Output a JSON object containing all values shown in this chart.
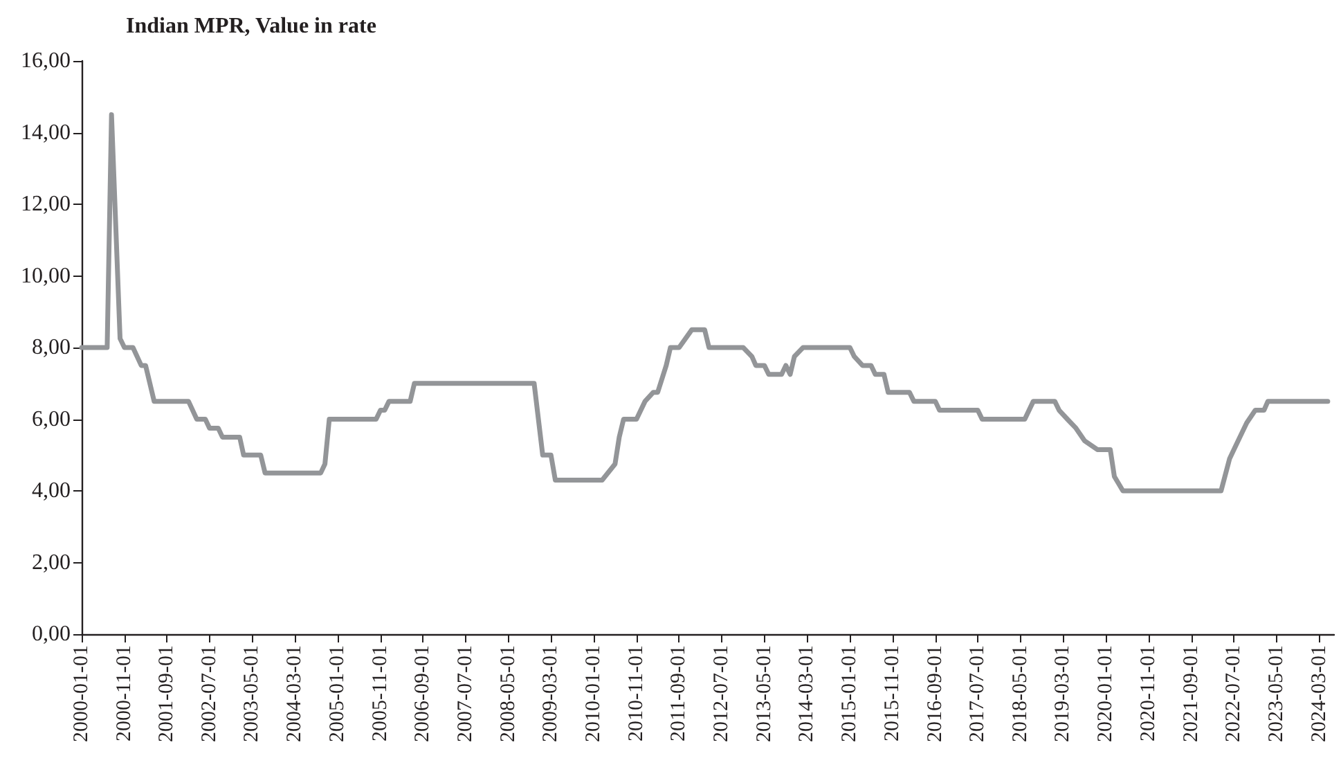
{
  "chart_data": {
    "type": "line",
    "title": "Indian MPR, Value in rate",
    "x": [
      "2000-01",
      "2000-07",
      "2000-08",
      "2000-10",
      "2000-11",
      "2001-01",
      "2001-03",
      "2001-04",
      "2001-06",
      "2002-02",
      "2002-04",
      "2002-06",
      "2002-07",
      "2002-09",
      "2002-10",
      "2003-02",
      "2003-03",
      "2003-07",
      "2003-08",
      "2004-09",
      "2004-10",
      "2004-11",
      "2005-10",
      "2005-11",
      "2005-12",
      "2006-01",
      "2006-06",
      "2006-07",
      "2008-11",
      "2009-01",
      "2009-03",
      "2009-04",
      "2010-03",
      "2010-06",
      "2010-07",
      "2010-08",
      "2010-11",
      "2011-01",
      "2011-03",
      "2011-04",
      "2011-06",
      "2011-07",
      "2011-09",
      "2011-12",
      "2012-03",
      "2012-04",
      "2012-12",
      "2013-02",
      "2013-03",
      "2013-05",
      "2013-06",
      "2013-09",
      "2013-10",
      "2013-11",
      "2013-12",
      "2014-02",
      "2015-01",
      "2015-02",
      "2015-04",
      "2015-06",
      "2015-07",
      "2015-09",
      "2015-10",
      "2016-03",
      "2016-04",
      "2016-09",
      "2016-10",
      "2017-07",
      "2017-08",
      "2018-06",
      "2018-08",
      "2019-01",
      "2019-02",
      "2019-04",
      "2019-06",
      "2019-08",
      "2019-11",
      "2020-02",
      "2020-03",
      "2020-05",
      "2022-04",
      "2022-06",
      "2022-08",
      "2022-10",
      "2022-12",
      "2023-02",
      "2023-03",
      "2024-05"
    ],
    "series": [
      {
        "color": "#939598",
        "values": [
          8.0,
          8.0,
          14.5,
          8.25,
          8.0,
          8.0,
          7.5,
          7.5,
          6.5,
          6.5,
          6.0,
          6.0,
          5.75,
          5.75,
          5.5,
          5.5,
          5.0,
          5.0,
          4.5,
          4.5,
          4.75,
          6.0,
          6.0,
          6.25,
          6.25,
          6.5,
          6.5,
          7.0,
          7.0,
          5.0,
          5.0,
          4.3,
          4.3,
          4.75,
          5.5,
          6.0,
          6.0,
          6.5,
          6.75,
          6.75,
          7.5,
          8.0,
          8.0,
          8.5,
          8.5,
          8.0,
          8.0,
          7.75,
          7.5,
          7.5,
          7.25,
          7.25,
          7.5,
          7.25,
          7.75,
          8.0,
          8.0,
          7.75,
          7.5,
          7.5,
          7.25,
          7.25,
          6.75,
          6.75,
          6.5,
          6.5,
          6.25,
          6.25,
          6.0,
          6.0,
          6.5,
          6.5,
          6.25,
          6.0,
          5.75,
          5.4,
          5.15,
          5.15,
          4.4,
          4.0,
          4.0,
          4.9,
          5.4,
          5.9,
          6.25,
          6.25,
          6.5,
          6.5
        ]
      }
    ],
    "xlim": [
      "2000-01-01",
      "2024-06-15"
    ],
    "xticks": [
      "2000-01-01",
      "2000-11-01",
      "2001-09-01",
      "2002-07-01",
      "2003-05-01",
      "2004-03-01",
      "2005-01-01",
      "2005-11-01",
      "2006-09-01",
      "2007-07-01",
      "2008-05-01",
      "2009-03-01",
      "2010-01-01",
      "2010-11-01",
      "2011-09-01",
      "2012-07-01",
      "2013-05-01",
      "2014-03-01",
      "2015-01-01",
      "2015-11-01",
      "2016-09-01",
      "2017-07-01",
      "2018-05-01",
      "2019-03-01",
      "2020-01-01",
      "2020-11-01",
      "2021-09-01",
      "2022-07-01",
      "2023-05-01",
      "2024-03-01"
    ],
    "ylim": [
      0,
      16
    ],
    "yticks": [
      {
        "value": 0,
        "label": "0,00"
      },
      {
        "value": 2,
        "label": "2,00"
      },
      {
        "value": 4,
        "label": "4,00"
      },
      {
        "value": 6,
        "label": "6,00"
      },
      {
        "value": 8,
        "label": "8,00"
      },
      {
        "value": 10,
        "label": "10,00"
      },
      {
        "value": 12,
        "label": "12,00"
      },
      {
        "value": 14,
        "label": "14,00"
      },
      {
        "value": 16,
        "label": "16,00"
      }
    ],
    "grid": false,
    "marker": "none",
    "line_style": "solid"
  }
}
